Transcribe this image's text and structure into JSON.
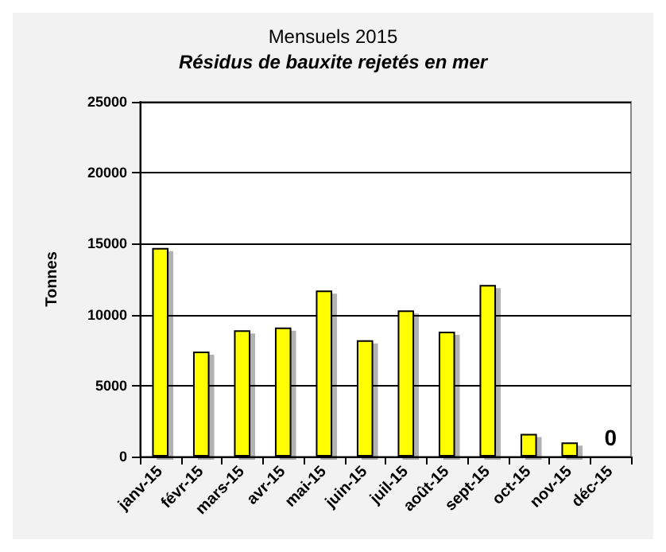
{
  "chart_data": {
    "type": "bar",
    "title": "Mensuels 2015",
    "subtitle": "Résidus de bauxite rejetés en mer",
    "ylabel": "Tonnes",
    "categories": [
      "janv-15",
      "févr-15",
      "mars-15",
      "avr-15",
      "mai-15",
      "juin-15",
      "juil-15",
      "août-15",
      "sept-15",
      "oct-15",
      "nov-15",
      "déc-15"
    ],
    "values": [
      14700,
      7400,
      8900,
      9100,
      11700,
      8200,
      10300,
      8800,
      12100,
      1600,
      1000,
      0
    ],
    "value_labels": [
      null,
      null,
      null,
      null,
      null,
      null,
      null,
      null,
      null,
      null,
      null,
      "0"
    ],
    "color": "#ffff00",
    "ylim": [
      0,
      25000
    ],
    "yticks": [
      0,
      5000,
      10000,
      15000,
      20000,
      25000
    ],
    "grid": "y"
  }
}
